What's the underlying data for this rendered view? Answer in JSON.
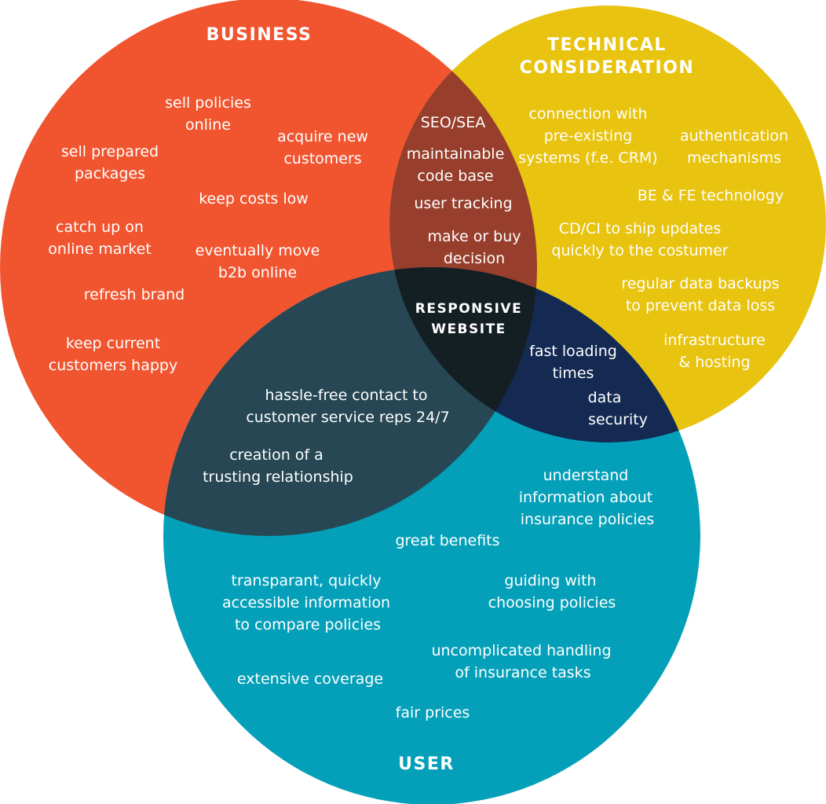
{
  "colors": {
    "business": "#f1552f",
    "technical": "#e8c30f",
    "user": "#04a0b9",
    "business_technical": "#973f2c",
    "business_user": "#264753",
    "technical_user": "#142a53",
    "center": "#141f24"
  },
  "titles": {
    "business": "BUSINESS",
    "technical_line1": "TECHNICAL",
    "technical_line2": "CONSIDERATION",
    "user": "USER",
    "center_line1": "RESPONSIVE",
    "center_line2": "WEBSITE"
  },
  "business_items": [
    [
      "sell policies",
      "online"
    ],
    [
      "acquire new",
      "customers"
    ],
    [
      "sell prepared",
      "packages"
    ],
    [
      "keep costs low"
    ],
    [
      "catch up on",
      "online market"
    ],
    [
      "eventually move",
      "b2b online"
    ],
    [
      "refresh brand"
    ],
    [
      "keep current",
      "customers happy"
    ]
  ],
  "business_technical_items": [
    [
      "SEO/SEA"
    ],
    [
      "maintainable",
      "code base"
    ],
    [
      "user tracking"
    ],
    [
      "make or buy",
      "decision"
    ]
  ],
  "technical_items": [
    [
      "connection with",
      "pre-existing",
      "systems (f.e. CRM)"
    ],
    [
      "authentication",
      "mechanisms"
    ],
    [
      "BE & FE technology"
    ],
    [
      "CD/CI to ship updates",
      "quickly to the costumer"
    ],
    [
      "regular data backups",
      "to prevent data loss"
    ],
    [
      "infrastructure",
      "& hosting"
    ]
  ],
  "technical_user_items": [
    [
      "fast loading",
      "times"
    ],
    [
      "data",
      "security"
    ]
  ],
  "business_user_items": [
    [
      "hassle-free contact to",
      "customer service reps 24/7"
    ],
    [
      "creation of a",
      "trusting relationship"
    ]
  ],
  "user_items": [
    [
      "understand",
      "information about",
      "insurance policies"
    ],
    [
      "great benefits"
    ],
    [
      "transparant, quickly",
      "accessible information",
      "to compare policies"
    ],
    [
      "guiding with",
      "choosing policies"
    ],
    [
      "uncomplicated handling",
      "of insurance tasks"
    ],
    [
      "extensive coverage"
    ],
    [
      "fair prices"
    ]
  ]
}
